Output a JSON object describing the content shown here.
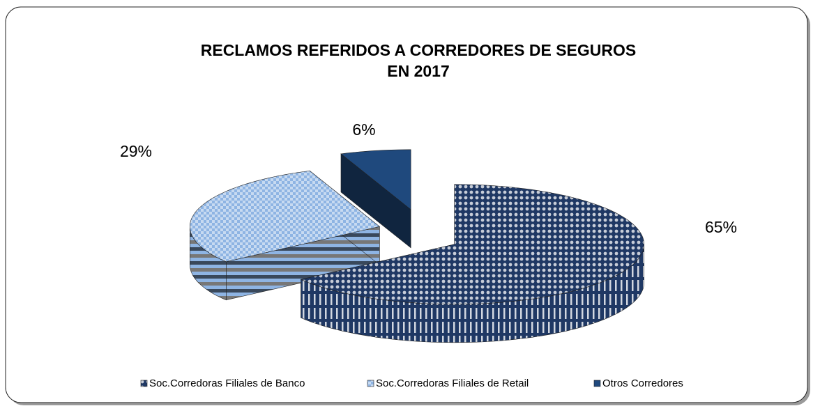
{
  "chart_data": {
    "type": "pie3d",
    "title": [
      "RECLAMOS REFERIDOS A CORREDORES DE SEGUROS",
      "EN 2017"
    ],
    "categories": [
      "Soc.Corredoras Filiales de Banco",
      "Soc.Corredoras Filiales de Retail",
      "Otros Corredores"
    ],
    "values": [
      65,
      29,
      6
    ],
    "value_labels": [
      "65%",
      "29%",
      "6%"
    ],
    "colors": [
      "#1f3864",
      "#8eb4e3",
      "#1f497d"
    ],
    "legend": "bottom"
  }
}
